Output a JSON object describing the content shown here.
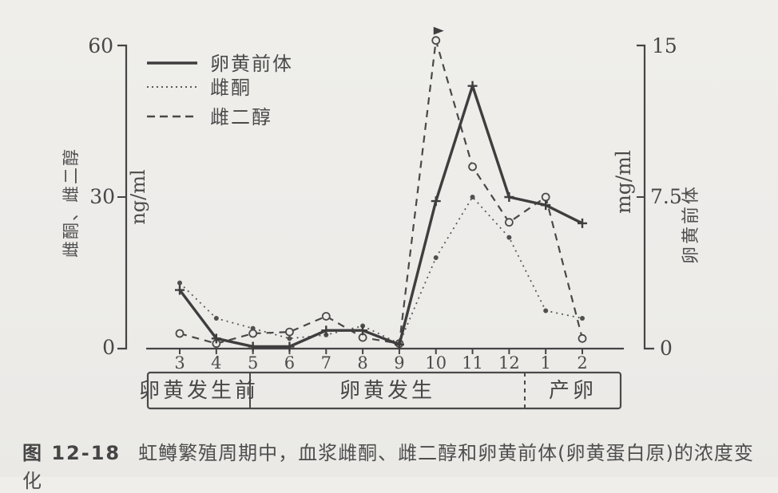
{
  "figure": {
    "number": "图 12-18",
    "caption": "虹鳟繁殖周期中，血浆雌酮、雌二醇和卵黄前体(卵黄蛋白原)的浓度变化"
  },
  "chart_data": {
    "type": "line",
    "categories": [
      "3",
      "4",
      "5",
      "6",
      "7",
      "8",
      "9",
      "10",
      "11",
      "12",
      "1",
      "2"
    ],
    "left_axis": {
      "label": "雌酮、雌二醇",
      "unit": "ng/ml",
      "ticks": [
        0,
        30,
        60
      ],
      "range": [
        0,
        60
      ]
    },
    "right_axis": {
      "label": "卵黄前体",
      "unit": "mg/ml",
      "ticks": [
        0,
        7.5,
        15
      ],
      "range": [
        0,
        15
      ]
    },
    "grid": false,
    "legend_position": "top-left",
    "series": [
      {
        "name": "卵黄前体",
        "axis": "right",
        "line_style": "solid",
        "marker": "plus",
        "values": [
          2.9,
          0.5,
          0.1,
          0.1,
          0.9,
          0.9,
          0.2,
          7.3,
          13,
          7.5,
          7.1,
          6.2
        ]
      },
      {
        "name": "雌酮",
        "axis": "left",
        "line_style": "dotted",
        "marker": "dot",
        "values": [
          13,
          6,
          4,
          2,
          2.7,
          4.5,
          1,
          18,
          30,
          22,
          7.5,
          6
        ]
      },
      {
        "name": "雌二醇",
        "axis": "left",
        "line_style": "dashed",
        "marker": "circle",
        "values": [
          3,
          1,
          3,
          3.3,
          6.4,
          2.2,
          1,
          61,
          36,
          25,
          30,
          2
        ]
      }
    ],
    "phases": [
      {
        "label": "卵黄发生前",
        "start_category": "3",
        "end_category": "4"
      },
      {
        "label": "卵黄发生",
        "start_category": "5",
        "end_category": "12"
      },
      {
        "label": "产卵",
        "start_category": "1",
        "end_category": "2"
      }
    ],
    "annotations": [
      {
        "type": "arrow-marker",
        "series": "雌二醇",
        "category": "10"
      }
    ]
  }
}
